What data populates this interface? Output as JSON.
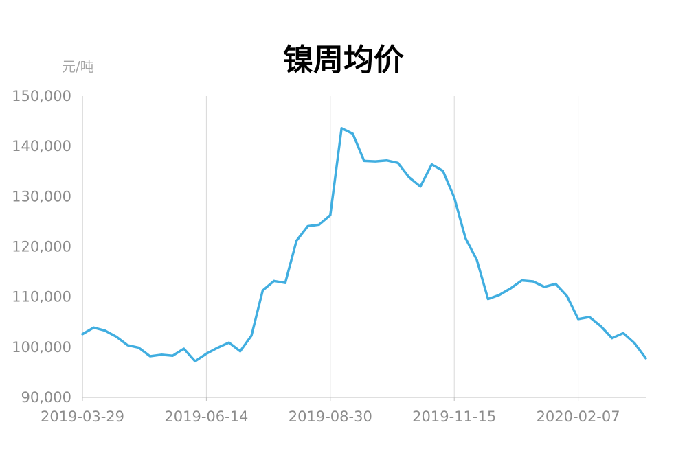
{
  "chart_data": {
    "type": "line",
    "title": "镍周均价",
    "ylabel": "元/吨",
    "xlabel": "",
    "ylim": [
      90000,
      150000
    ],
    "yticks": [
      90000,
      100000,
      110000,
      120000,
      130000,
      140000,
      150000
    ],
    "ytick_labels": [
      "90,000",
      "100,000",
      "110,000",
      "120,000",
      "130,000",
      "140,000",
      "150,000"
    ],
    "x_tick_labels": [
      "2019-03-29",
      "2019-06-14",
      "2019-08-30",
      "2019-11-15",
      "2020-02-07"
    ],
    "x_tick_indices": [
      0,
      11,
      22,
      33,
      44
    ],
    "grid": "vertical",
    "line_color": "#41aee0",
    "series": [
      {
        "values": [
          102600,
          103900,
          103300,
          102100,
          100400,
          99900,
          98200,
          98500,
          98300,
          99700,
          97200,
          98700,
          99900,
          100900,
          99200,
          102300,
          111300,
          113200,
          112800,
          121200,
          124100,
          124400,
          126300,
          143600,
          142500,
          137100,
          137000,
          137200,
          136700,
          133800,
          132000,
          136400,
          135100,
          129800,
          121700,
          117400,
          109600,
          110400,
          111700,
          113300,
          113100,
          112000,
          112600,
          110200,
          105600,
          106000,
          104200,
          101800,
          102800,
          100800,
          97800
        ]
      }
    ]
  }
}
